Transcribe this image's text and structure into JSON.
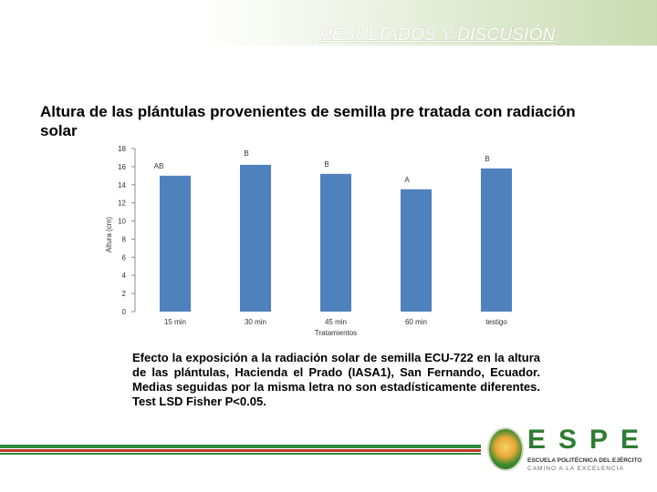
{
  "header": {
    "title": "RESULTADOS Y DISCUSIÓN"
  },
  "slide": {
    "heading": "Altura de las plántulas provenientes de semilla pre tratada con radiación solar",
    "caption": "Efecto la exposición a la radiación solar de semilla ECU-722 en la altura de las plántulas, Hacienda el Prado (IASA1), San Fernando, Ecuador. Medias seguidas por la misma letra no son estadísticamente diferentes. Test LSD Fisher P<0.05."
  },
  "chart_data": {
    "type": "bar",
    "title": "",
    "xlabel": "Tratamientos",
    "ylabel": "Altura (cm)",
    "ylim": [
      0,
      18
    ],
    "yticks": [
      0,
      2,
      4,
      6,
      8,
      10,
      12,
      14,
      16,
      18
    ],
    "grid": false,
    "legend": "none",
    "categories": [
      "15 min",
      "30 min",
      "45 min",
      "60 min",
      "testigo"
    ],
    "values": [
      15.0,
      16.2,
      15.2,
      13.5,
      15.8
    ],
    "data_labels": [
      "AB",
      "B",
      "B",
      "A",
      "B"
    ],
    "bar_color": "#4f81bd"
  },
  "logo": {
    "letters": "ESPE",
    "line1": "ESCUELA POLITÉCNICA DEL EJÉRCITO",
    "line2": "CAMINO A LA EXCELENCIA"
  },
  "colors": {
    "footer_green": "#2e8b3a",
    "footer_red": "#c0392b",
    "accent_green": "#c9dbb3"
  }
}
